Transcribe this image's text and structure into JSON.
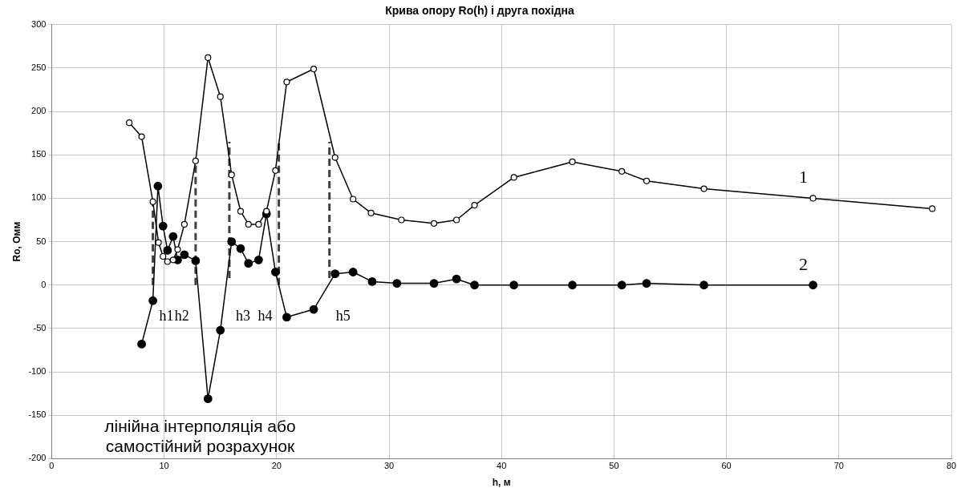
{
  "chart_data": {
    "type": "line",
    "title": "Крива опору Ro(h) і друга похідна",
    "xlabel": "h, м",
    "ylabel": "Ro, Омм",
    "xlim": [
      0,
      80
    ],
    "xticks": [
      0,
      10,
      20,
      30,
      40,
      50,
      60,
      70,
      80
    ],
    "ylim": [
      -200,
      300
    ],
    "yticks": [
      -200,
      -150,
      -100,
      -50,
      0,
      50,
      100,
      150,
      200,
      250,
      300
    ],
    "grid": true,
    "legend": false,
    "marker": "circle",
    "line_style": "solid",
    "series": [
      {
        "name": "1",
        "color": "#000000",
        "x": [
          6.9,
          8.0,
          9.0,
          9.5,
          9.9,
          10.3,
          10.8,
          11.2,
          11.8,
          12.8,
          13.9,
          15.0,
          16.0,
          16.8,
          17.5,
          18.4,
          19.1,
          19.9,
          20.9,
          23.3,
          25.2,
          26.8,
          28.4,
          31.1,
          34.0,
          36.0,
          37.6,
          41.1,
          46.3,
          50.7,
          52.9,
          58.0,
          67.7,
          78.3
        ],
        "values": [
          187,
          171,
          96,
          49,
          33,
          27,
          29,
          41,
          70,
          143,
          262,
          217,
          127,
          85,
          70,
          70,
          85,
          132,
          234,
          249,
          147,
          99,
          83,
          75,
          71,
          75,
          92,
          124,
          142,
          131,
          120,
          111,
          100,
          88
        ]
      },
      {
        "name": "2",
        "color": "#000000",
        "x": [
          8.0,
          9.0,
          9.45,
          9.9,
          10.3,
          10.8,
          11.2,
          11.8,
          12.8,
          13.9,
          15.0,
          16.0,
          16.8,
          17.5,
          18.4,
          19.1,
          19.9,
          20.9,
          23.3,
          25.2,
          26.8,
          28.5,
          30.7,
          34.0,
          36.0,
          37.6,
          41.1,
          46.3,
          50.7,
          52.9,
          58.0,
          67.7
        ],
        "values": [
          -68,
          -18,
          114,
          68,
          40,
          56,
          29,
          35,
          28,
          -131,
          -52,
          50,
          42,
          25,
          29,
          82,
          15,
          -37,
          -28,
          13,
          15,
          4,
          2,
          2,
          7,
          0,
          0,
          0,
          0,
          2,
          0,
          0
        ]
      },
      {
        "type": "line",
        "color": "#404040",
        "line_style": "dashed",
        "marker": "none",
        "x": [
          9.0,
          9.0
        ],
        "values": [
          0,
          96
        ]
      },
      {
        "type": "line",
        "color": "#404040",
        "line_style": "dashed",
        "marker": "none",
        "x": [
          12.8,
          12.8
        ],
        "values": [
          0,
          143
        ]
      },
      {
        "type": "line",
        "color": "#404040",
        "line_style": "dashed",
        "marker": "none",
        "x": [
          15.8,
          15.8
        ],
        "values": [
          8,
          165
        ]
      },
      {
        "type": "line",
        "color": "#404040",
        "line_style": "dashed",
        "marker": "none",
        "x": [
          20.2,
          20.2
        ],
        "values": [
          0,
          165
        ]
      },
      {
        "type": "line",
        "color": "#404040",
        "line_style": "dashed",
        "marker": "none",
        "x": [
          24.7,
          24.7
        ],
        "values": [
          8,
          165
        ]
      }
    ],
    "annotations": [
      {
        "text": "h1",
        "x": 9.0,
        "y": 0
      },
      {
        "text": "h2",
        "x": 12.8,
        "y": 0
      },
      {
        "text": "h3",
        "x": 15.8,
        "y": 0
      },
      {
        "text": "h4",
        "x": 20.2,
        "y": 0
      },
      {
        "text": "h5",
        "x": 24.7,
        "y": 0
      },
      "лінійна інтерполяція або самостійний розрахунок"
    ]
  }
}
